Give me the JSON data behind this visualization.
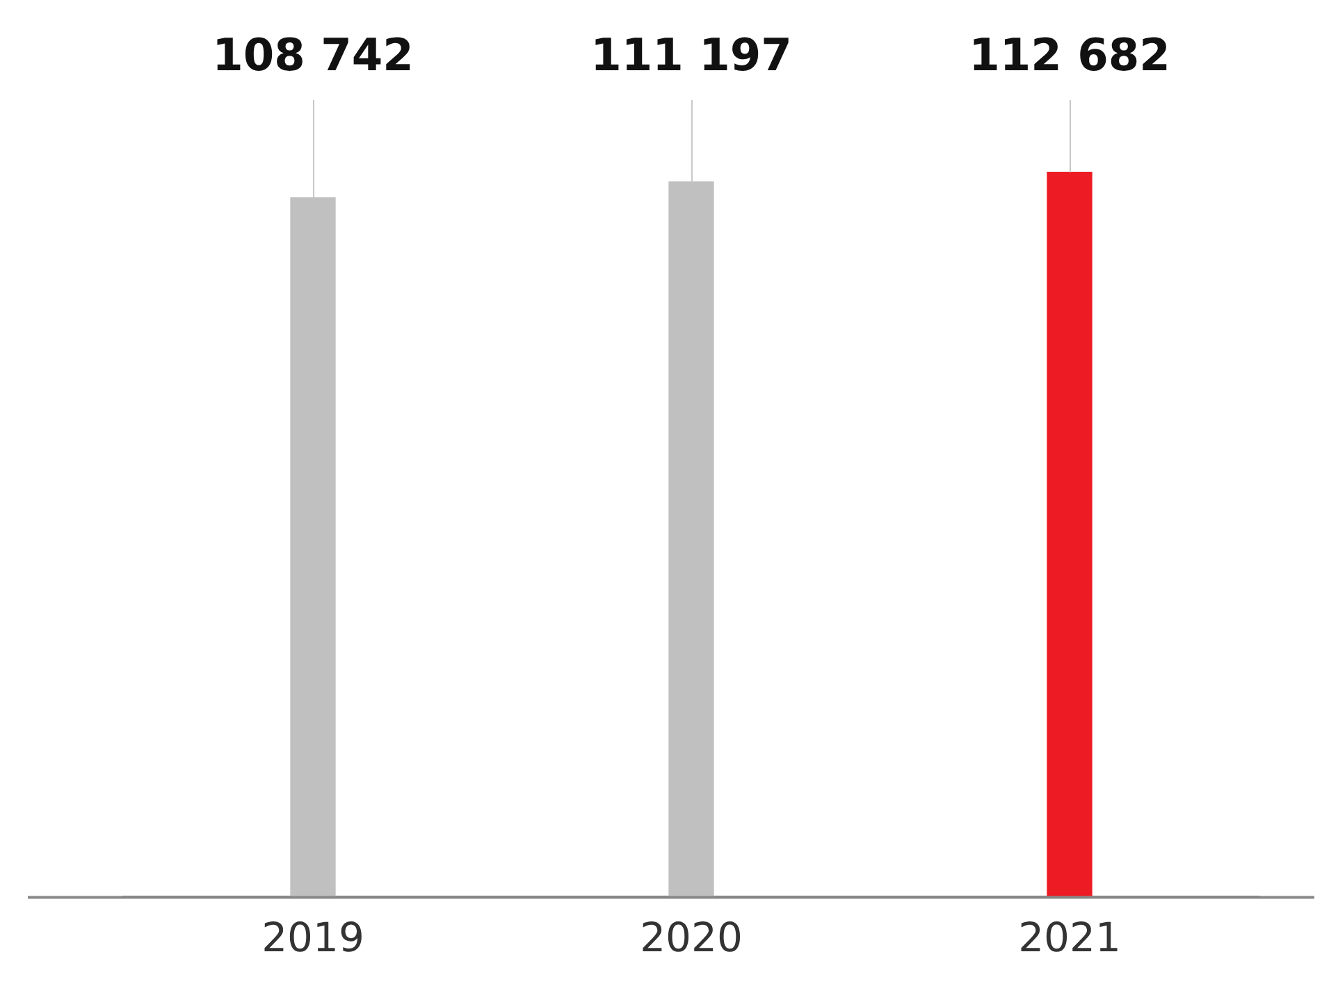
{
  "chart_data": {
    "type": "bar",
    "categories": [
      "2019",
      "2020",
      "2021"
    ],
    "values": [
      108742,
      111197,
      112682
    ],
    "colors": [
      "#c0c0c0",
      "#c0c0c0",
      "#ed1c24"
    ],
    "value_labels": [
      "108 742",
      "111 197",
      "112 682"
    ],
    "tick_labels": "x",
    "grid": false,
    "legend": false
  }
}
